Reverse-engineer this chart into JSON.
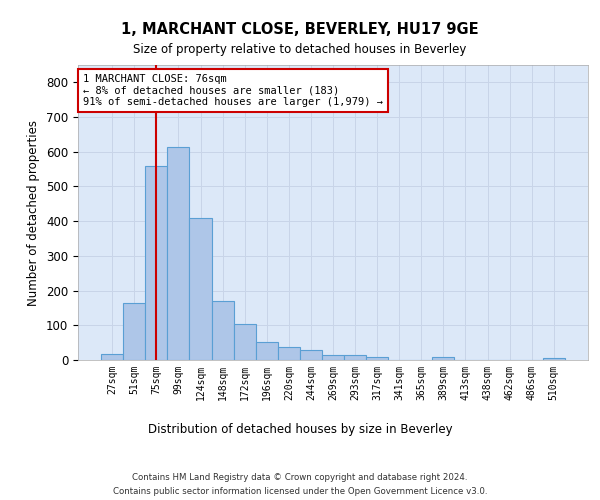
{
  "title": "1, MARCHANT CLOSE, BEVERLEY, HU17 9GE",
  "subtitle": "Size of property relative to detached houses in Beverley",
  "xlabel": "Distribution of detached houses by size in Beverley",
  "ylabel": "Number of detached properties",
  "bar_color": "#aec6e8",
  "bar_edge_color": "#5a9fd4",
  "grid_color": "#c8d4e8",
  "background_color": "#dce8f8",
  "categories": [
    "27sqm",
    "51sqm",
    "75sqm",
    "99sqm",
    "124sqm",
    "148sqm",
    "172sqm",
    "196sqm",
    "220sqm",
    "244sqm",
    "269sqm",
    "293sqm",
    "317sqm",
    "341sqm",
    "365sqm",
    "389sqm",
    "413sqm",
    "438sqm",
    "462sqm",
    "486sqm",
    "510sqm"
  ],
  "values": [
    18,
    163,
    560,
    615,
    410,
    170,
    103,
    52,
    38,
    30,
    14,
    13,
    10,
    0,
    0,
    8,
    0,
    0,
    0,
    0,
    7
  ],
  "vline_x": 2.0,
  "vline_color": "#cc0000",
  "annotation_text": "1 MARCHANT CLOSE: 76sqm\n← 8% of detached houses are smaller (183)\n91% of semi-detached houses are larger (1,979) →",
  "annotation_box_color": "#cc0000",
  "ylim": [
    0,
    850
  ],
  "yticks": [
    0,
    100,
    200,
    300,
    400,
    500,
    600,
    700,
    800
  ],
  "footnote_line1": "Contains HM Land Registry data © Crown copyright and database right 2024.",
  "footnote_line2": "Contains public sector information licensed under the Open Government Licence v3.0."
}
